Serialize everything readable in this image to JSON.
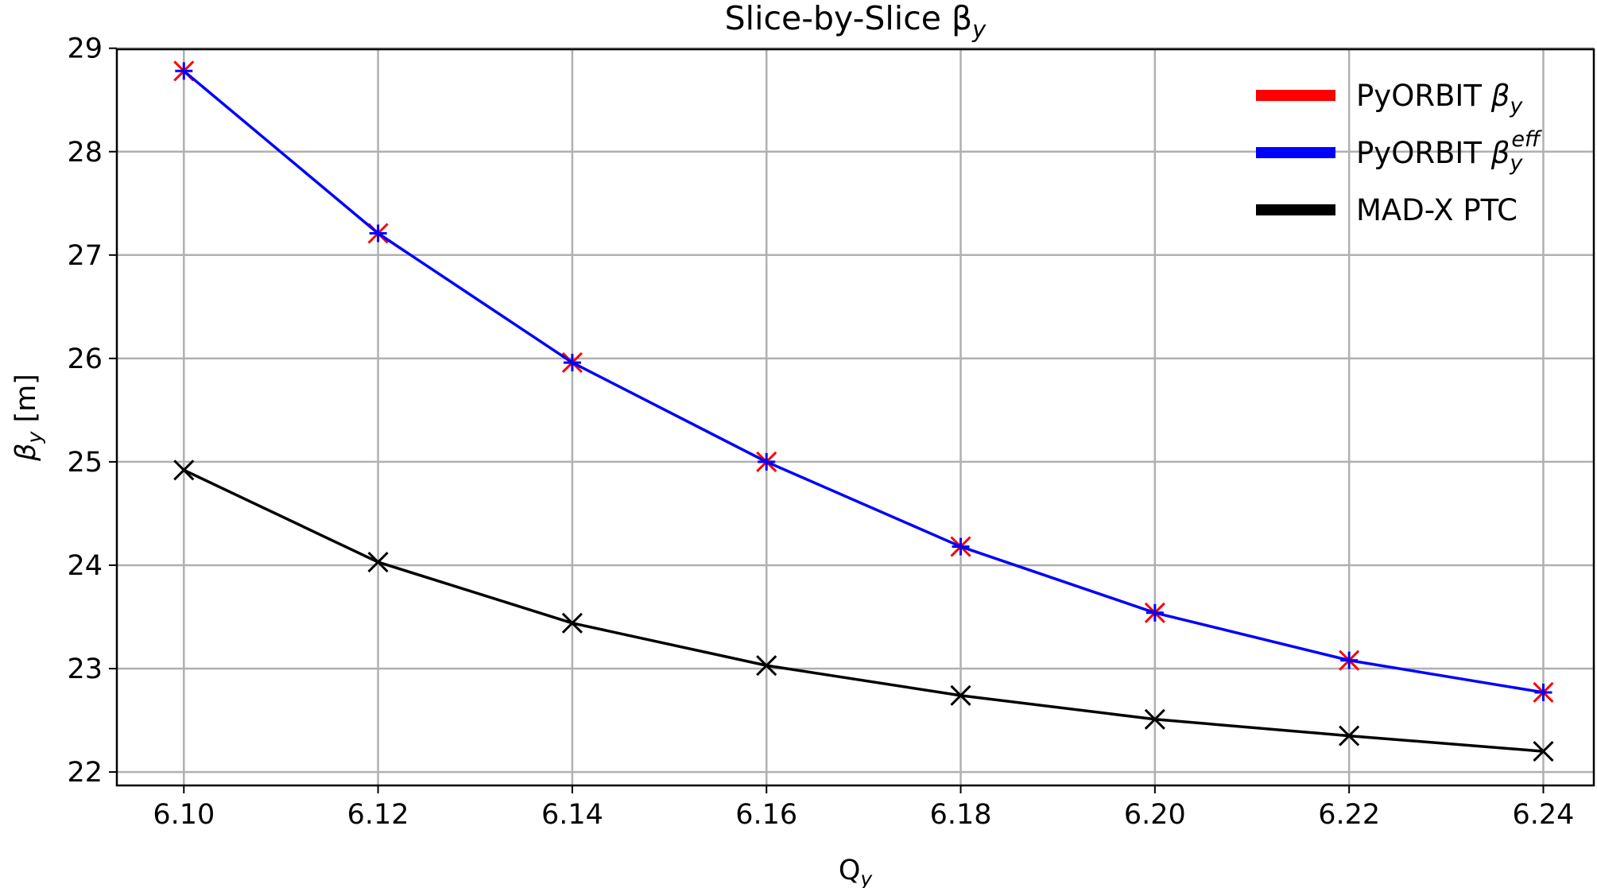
{
  "chart_data": {
    "type": "line",
    "title": "Slice-by-Slice β",
    "title_sub": "y",
    "xlabel": "Q",
    "xlabel_sub": "y",
    "ylabel": "β",
    "ylabel_sub": "y",
    "ylabel_unit": " [m]",
    "x": [
      6.1,
      6.12,
      6.14,
      6.16,
      6.18,
      6.2,
      6.22,
      6.24
    ],
    "x_tick_labels": [
      "6.10",
      "6.12",
      "6.14",
      "6.16",
      "6.18",
      "6.20",
      "6.22",
      "6.24"
    ],
    "y_ticks": [
      22,
      23,
      24,
      25,
      26,
      27,
      28,
      29
    ],
    "y_tick_labels": [
      "22",
      "23",
      "24",
      "25",
      "26",
      "27",
      "28",
      "29"
    ],
    "xlim": [
      6.0931,
      6.2452
    ],
    "ylim": [
      21.87,
      28.99
    ],
    "grid": true,
    "legend_position": "top-right",
    "series": [
      {
        "name": "PyORBIT β",
        "name_sub": "y",
        "name_sup": "",
        "color": "#ff0000",
        "marker": "x",
        "line": false,
        "values": [
          28.78,
          27.21,
          25.96,
          25.0,
          24.18,
          23.54,
          23.08,
          22.77
        ]
      },
      {
        "name": "PyORBIT β",
        "name_sub": "y",
        "name_sup": "eff",
        "color": "#0000ff",
        "marker": "+",
        "line": true,
        "values": [
          28.78,
          27.21,
          25.96,
          25.0,
          24.18,
          23.54,
          23.08,
          22.77
        ]
      },
      {
        "name": "MAD-X PTC",
        "name_sub": "",
        "name_sup": "",
        "color": "#000000",
        "marker": "x",
        "line": true,
        "values": [
          24.92,
          24.03,
          23.44,
          23.03,
          22.74,
          22.51,
          22.35,
          22.2
        ]
      }
    ]
  }
}
